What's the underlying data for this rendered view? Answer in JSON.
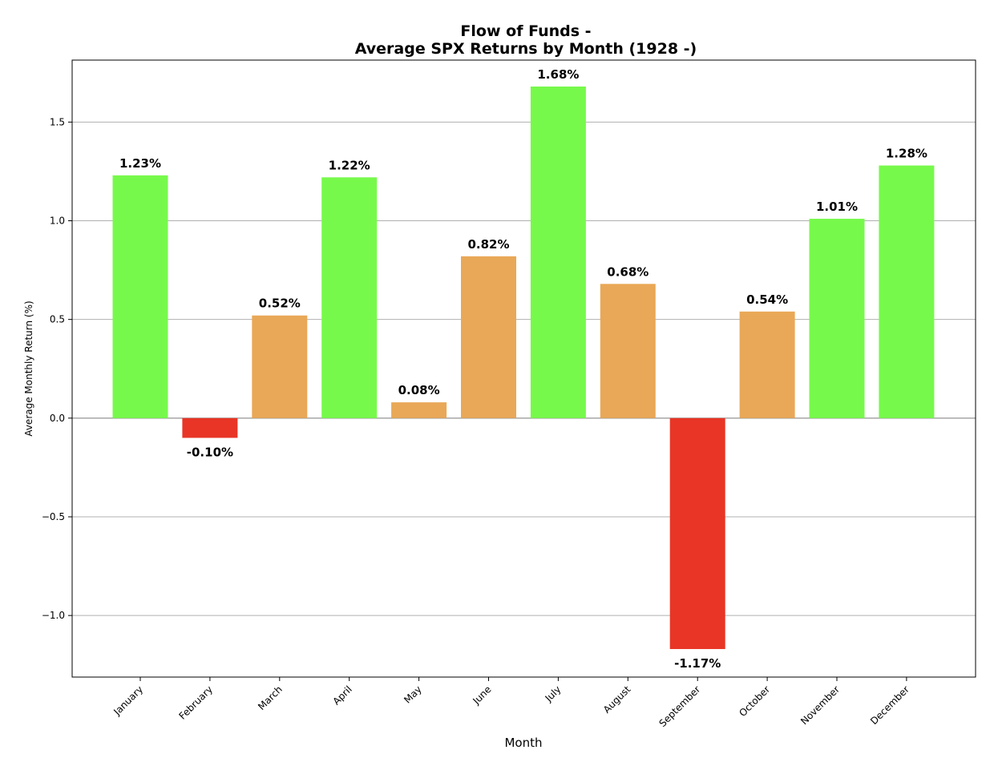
{
  "chart_data": {
    "type": "bar",
    "title_lines": [
      "Flow of Funds -",
      "Average SPX Returns by Month (1928 -)"
    ],
    "xlabel": "Month",
    "ylabel": "Average Monthly Return (%)",
    "categories": [
      "January",
      "February",
      "March",
      "April",
      "May",
      "June",
      "July",
      "August",
      "September",
      "October",
      "November",
      "December"
    ],
    "values": [
      1.23,
      -0.1,
      0.52,
      1.22,
      0.08,
      0.82,
      1.68,
      0.68,
      -1.17,
      0.54,
      1.01,
      1.28
    ],
    "data_labels": [
      "1.23%",
      "-0.10%",
      "0.52%",
      "1.22%",
      "0.08%",
      "0.82%",
      "1.68%",
      "0.68%",
      "-1.17%",
      "0.54%",
      "1.01%",
      "1.28%"
    ],
    "yticks": [
      -1.0,
      -0.5,
      0.0,
      0.5,
      1.0,
      1.5
    ],
    "ytick_labels": [
      "−1.0",
      "−0.5",
      "0.0",
      "0.5",
      "1.0",
      "1.5"
    ],
    "ylim": [
      -1.312,
      1.814
    ],
    "grid": "horizontal",
    "colors": {
      "high": "#77f94b",
      "mid": "#e9a857",
      "negative": "#e83526"
    },
    "bar_color_class": [
      "high",
      "negative",
      "mid",
      "high",
      "mid",
      "mid",
      "high",
      "mid",
      "negative",
      "mid",
      "high",
      "high"
    ]
  }
}
